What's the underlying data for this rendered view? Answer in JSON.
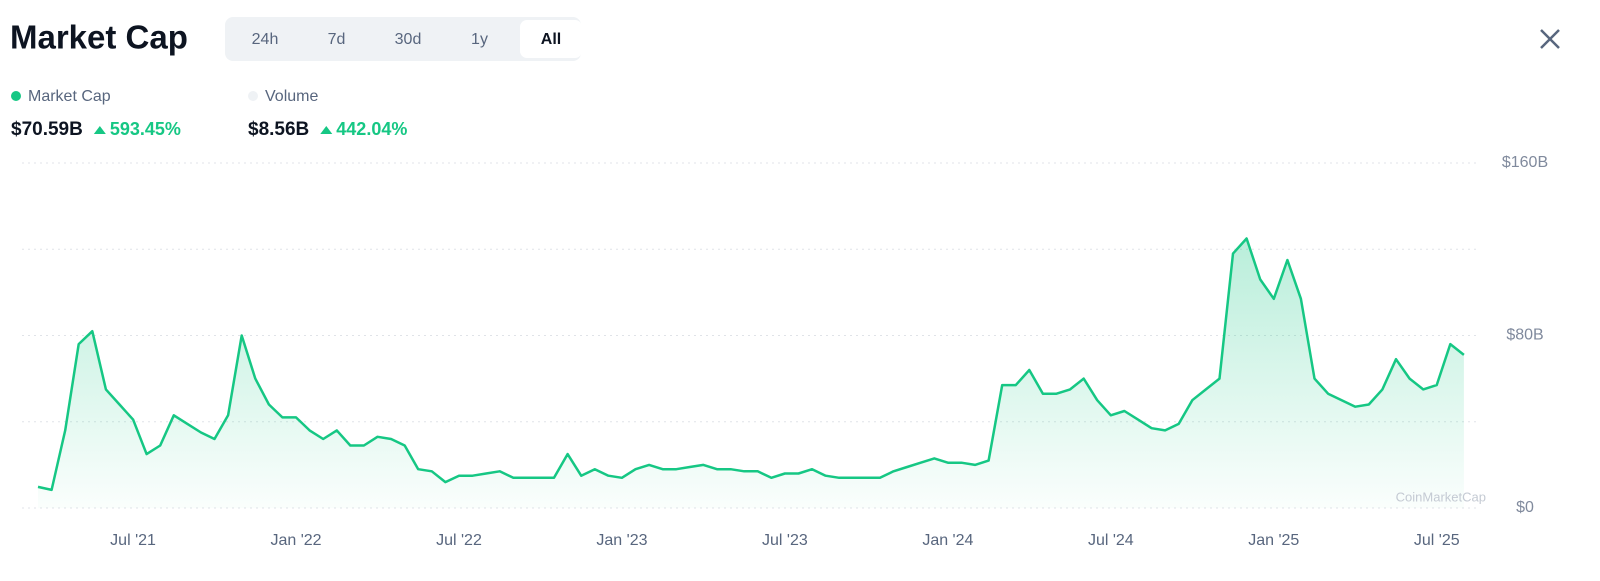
{
  "header": {
    "title": "Market Cap",
    "tabs": [
      "24h",
      "7d",
      "30d",
      "1y",
      "All"
    ],
    "active_tab": 4
  },
  "stats": [
    {
      "name": "Market Cap",
      "color": "#16c784",
      "value": "$70.59B",
      "change": "593.45%"
    },
    {
      "name": "Volume",
      "color": "#eff2f5",
      "value": "$8.56B",
      "change": "442.04%"
    }
  ],
  "chart_data": {
    "type": "area",
    "categories": [
      null,
      null,
      null,
      null,
      null,
      null,
      null,
      "Jul '21",
      null,
      null,
      null,
      null,
      null,
      null,
      null,
      null,
      null,
      null,
      null,
      "Jan '22",
      null,
      null,
      null,
      null,
      null,
      null,
      null,
      null,
      null,
      null,
      null,
      "Jul '22",
      null,
      null,
      null,
      null,
      null,
      null,
      null,
      null,
      null,
      null,
      null,
      "Jan '23",
      null,
      null,
      null,
      null,
      null,
      null,
      null,
      null,
      null,
      null,
      null,
      "Jul '23",
      null,
      null,
      null,
      null,
      null,
      null,
      null,
      null,
      null,
      null,
      null,
      "Jan '24",
      null,
      null,
      null,
      null,
      null,
      null,
      null,
      null,
      null,
      null,
      null,
      "Jul '24",
      null,
      null,
      null,
      null,
      null,
      null,
      null,
      null,
      null,
      null,
      null,
      "Jan '25",
      null,
      null,
      null,
      null,
      null,
      null,
      null,
      null,
      null,
      null,
      null,
      "Jul '25",
      null,
      null
    ],
    "values": [
      9.8,
      8.4,
      36,
      76,
      82,
      55,
      48,
      41,
      25,
      29,
      43,
      39,
      35,
      32,
      43,
      80,
      60,
      48,
      42,
      42,
      36,
      32,
      36,
      29,
      29,
      33,
      32,
      29,
      18,
      17,
      12,
      15,
      15,
      16,
      17,
      14,
      14,
      14,
      14,
      25,
      15,
      18,
      15,
      14,
      18,
      20,
      18,
      18,
      19,
      20,
      18,
      18,
      17,
      17,
      14,
      16,
      16,
      18,
      15,
      14,
      14,
      14,
      14,
      17,
      19,
      21,
      23,
      21,
      21,
      20,
      22,
      57,
      57,
      64,
      53,
      53,
      55,
      60,
      50,
      43,
      45,
      41,
      37,
      36,
      39,
      50,
      55,
      60,
      118,
      125,
      106,
      97,
      115,
      97,
      60,
      53,
      50,
      47,
      48,
      55,
      69,
      60,
      55,
      57,
      76,
      71
    ],
    "color": "#16c784",
    "ylim": [
      0,
      160
    ],
    "yticks": [
      {
        "value": 0,
        "label": "$0"
      },
      {
        "value": 40,
        "label": null
      },
      {
        "value": 80,
        "label": "$80B"
      },
      {
        "value": 120,
        "label": null
      },
      {
        "value": 160,
        "label": "$160B"
      }
    ],
    "grid": true,
    "watermark": "CoinMarketCap"
  }
}
